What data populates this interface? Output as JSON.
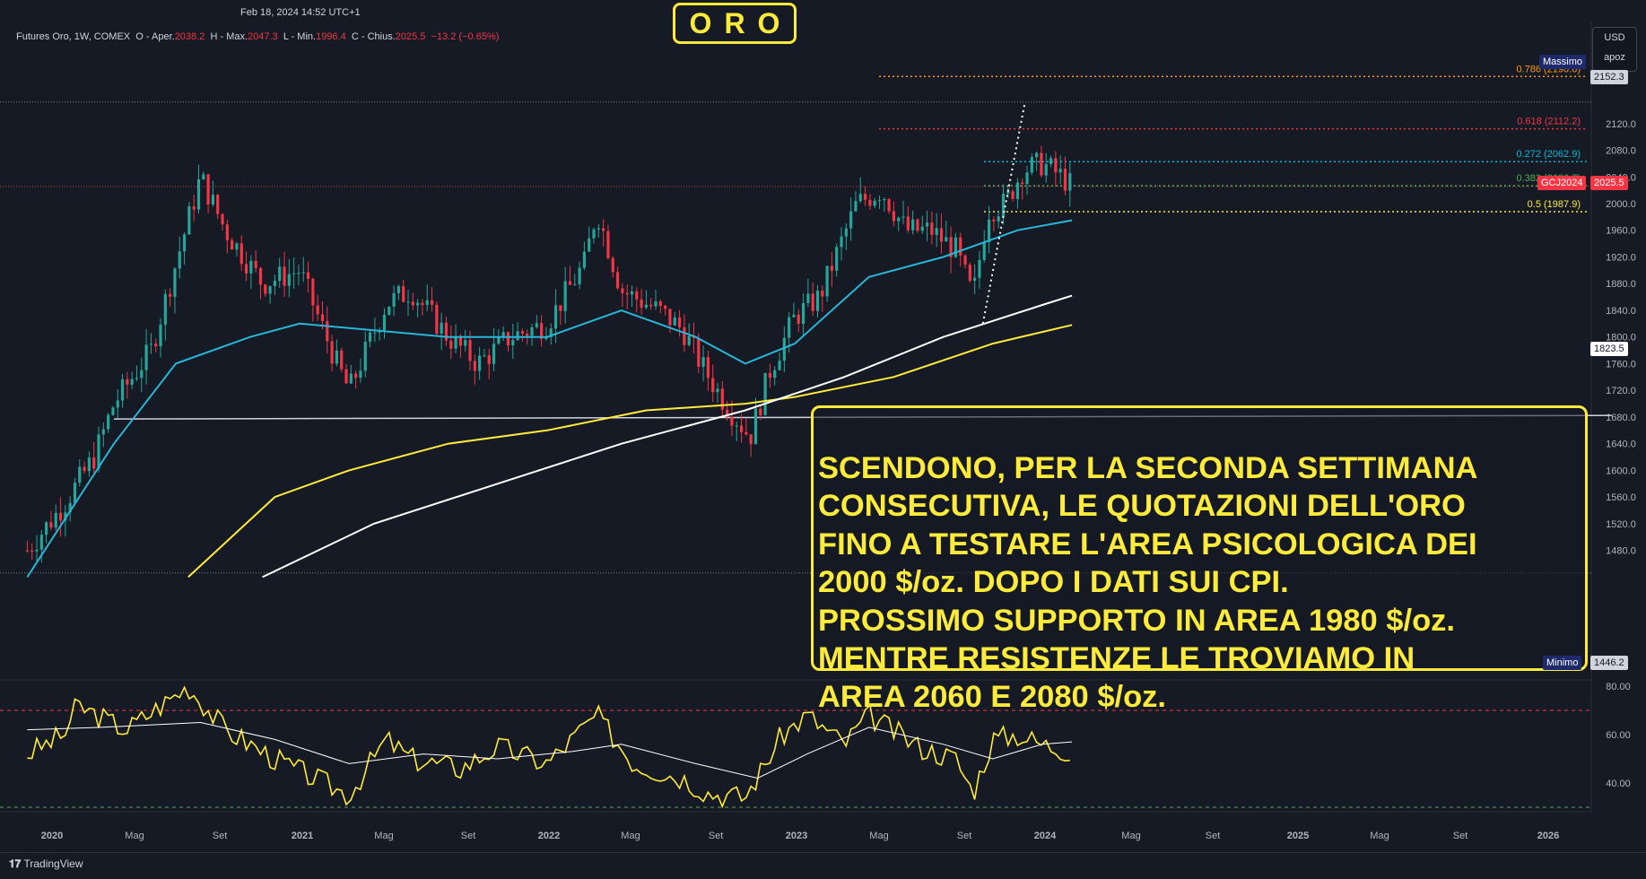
{
  "header": {
    "timestamp": "Feb 18, 2024 14:52 UTC+1",
    "symbol_line": "Futures Oro, 1W, COMEX",
    "ohlc": {
      "open_label": "O - Aper.",
      "open": "2038.2",
      "high_label": "H - Max.",
      "high": "2047.3",
      "low_label": "L - Min.",
      "low": "1996.4",
      "close_label": "C - Chius.",
      "close": "2025.5",
      "change": "−13.2 (−0.65%)"
    }
  },
  "title": "ORO",
  "annotation": {
    "lines": [
      "SCENDONO, PER LA SECONDA SETTIMANA",
      "CONSECUTIVA, LE QUOTAZIONI DELL'ORO",
      "FINO A TESTARE L'AREA PSICOLOGICA DEI",
      "2000 $/oz. DOPO I DATI SUI CPI.",
      "PROSSIMO SUPPORTO IN AREA 1980 $/oz.",
      "MENTRE RESISTENZE LE TROVIAMO IN",
      "AREA 2060 E 2080 $/oz."
    ]
  },
  "currency": {
    "code": "USD",
    "sub": "apoz"
  },
  "price_tags": {
    "max_label": "Massimo",
    "max_value": "2152.3",
    "min_label": "Minimo",
    "min_value": "1446.2",
    "last_symbol": "GCJ2024",
    "last_value": "2025.5",
    "crosshair_value": "1823.5"
  },
  "branding": "TradingView",
  "colors": {
    "background": "#161a25",
    "up": "#26a69a",
    "down": "#f23645",
    "ma_fast": "#29b6d6",
    "ma_mid": "#ffeb3b",
    "ma_slow": "#ffffff",
    "accent_yellow": "#ffeb3b"
  },
  "chart_data": [
    {
      "type": "candlestick",
      "timeframe": "1W",
      "x_ticks": [
        "2020",
        "Mag",
        "Set",
        "2021",
        "Mag",
        "Set",
        "2022",
        "Mag",
        "Set",
        "2023",
        "Mag",
        "Set",
        "2024",
        "Mag",
        "Set",
        "2025",
        "Mag",
        "Set",
        "2026"
      ],
      "y_ticks": [
        1480,
        1520,
        1560,
        1600,
        1640,
        1680,
        1720,
        1760,
        1800,
        1840,
        1880,
        1920,
        1960,
        2000,
        2040,
        2080,
        2120
      ],
      "ylim": [
        1430,
        2200
      ],
      "close_path": [
        [
          2019.9,
          1480
        ],
        [
          2020.05,
          1550
        ],
        [
          2020.17,
          1620
        ],
        [
          2020.25,
          1700
        ],
        [
          2020.4,
          1780
        ],
        [
          2020.6,
          2040
        ],
        [
          2020.7,
          1960
        ],
        [
          2020.85,
          1880
        ],
        [
          2021.0,
          1900
        ],
        [
          2021.15,
          1760
        ],
        [
          2021.2,
          1720
        ],
        [
          2021.35,
          1850
        ],
        [
          2021.45,
          1870
        ],
        [
          2021.6,
          1800
        ],
        [
          2021.72,
          1760
        ],
        [
          2021.85,
          1800
        ],
        [
          2022.0,
          1820
        ],
        [
          2022.15,
          1910
        ],
        [
          2022.2,
          1990
        ],
        [
          2022.3,
          1870
        ],
        [
          2022.45,
          1840
        ],
        [
          2022.55,
          1810
        ],
        [
          2022.62,
          1760
        ],
        [
          2022.72,
          1700
        ],
        [
          2022.82,
          1650
        ],
        [
          2022.9,
          1750
        ],
        [
          2023.0,
          1830
        ],
        [
          2023.1,
          1860
        ],
        [
          2023.25,
          2000
        ],
        [
          2023.35,
          2020
        ],
        [
          2023.45,
          1960
        ],
        [
          2023.55,
          1960
        ],
        [
          2023.65,
          1930
        ],
        [
          2023.72,
          1860
        ],
        [
          2023.78,
          1990
        ],
        [
          2023.85,
          2000
        ],
        [
          2023.92,
          2050
        ],
        [
          2024.0,
          2060
        ],
        [
          2024.08,
          2040
        ],
        [
          2024.12,
          2025.5
        ]
      ],
      "moving_averages": [
        {
          "name": "MA fast",
          "color": "#29b6d6",
          "points": [
            [
              2019.9,
              1440
            ],
            [
              2020.25,
              1640
            ],
            [
              2020.5,
              1760
            ],
            [
              2020.8,
              1800
            ],
            [
              2021.0,
              1820
            ],
            [
              2021.3,
              1810
            ],
            [
              2021.6,
              1800
            ],
            [
              2022.0,
              1800
            ],
            [
              2022.3,
              1840
            ],
            [
              2022.6,
              1800
            ],
            [
              2022.8,
              1760
            ],
            [
              2023.0,
              1790
            ],
            [
              2023.3,
              1890
            ],
            [
              2023.6,
              1920
            ],
            [
              2023.9,
              1960
            ],
            [
              2024.12,
              1975
            ]
          ]
        },
        {
          "name": "MA mid",
          "color": "#ffeb3b",
          "points": [
            [
              2020.55,
              1440
            ],
            [
              2020.9,
              1560
            ],
            [
              2021.2,
              1600
            ],
            [
              2021.6,
              1640
            ],
            [
              2022.0,
              1660
            ],
            [
              2022.4,
              1690
            ],
            [
              2022.8,
              1700
            ],
            [
              2023.0,
              1710
            ],
            [
              2023.4,
              1740
            ],
            [
              2023.8,
              1790
            ],
            [
              2024.12,
              1818
            ]
          ]
        },
        {
          "name": "MA slow",
          "color": "#ffffff",
          "points": [
            [
              2020.85,
              1440
            ],
            [
              2021.3,
              1520
            ],
            [
              2021.8,
              1580
            ],
            [
              2022.3,
              1640
            ],
            [
              2022.8,
              1690
            ],
            [
              2023.2,
              1740
            ],
            [
              2023.6,
              1800
            ],
            [
              2024.0,
              1848
            ],
            [
              2024.12,
              1862
            ]
          ]
        }
      ],
      "fibonacci": [
        {
          "label": "0.786 (2190.6)",
          "value": 2190.6,
          "color": "#ff9800"
        },
        {
          "label": "0.618 (2112.2)",
          "value": 2112.2,
          "color": "#f23645"
        },
        {
          "label": "0.272 (2062.9)",
          "value": 2062.9,
          "color": "#00bcd4"
        },
        {
          "label": "0.382 (2026.7)",
          "value": 2026.7,
          "color": "#4caf50"
        },
        {
          "label": "0.5 (1987.9)",
          "value": 1987.9,
          "color": "#ffeb3b"
        }
      ],
      "horizontal_lines": [
        {
          "value": 1677,
          "from": 2020.25,
          "to": 2026.3,
          "color": "#d1d4dc"
        }
      ],
      "trend_line": {
        "from": [
          2023.76,
          1820
        ],
        "to": [
          2023.93,
          2152.3
        ],
        "style": "dotted",
        "color": "#ffffff"
      }
    },
    {
      "type": "line",
      "name": "RSI",
      "y_ticks": [
        40,
        60,
        80
      ],
      "levels": [
        {
          "value": 70,
          "color": "#f23645"
        },
        {
          "value": 30,
          "color": "#4caf50"
        }
      ],
      "series": [
        {
          "color": "#ffeb3b",
          "values": [
            [
              2019.9,
              52
            ],
            [
              2020.05,
              60
            ],
            [
              2020.1,
              72
            ],
            [
              2020.3,
              62
            ],
            [
              2020.55,
              80
            ],
            [
              2020.7,
              62
            ],
            [
              2020.9,
              50
            ],
            [
              2021.1,
              40
            ],
            [
              2021.2,
              35
            ],
            [
              2021.35,
              58
            ],
            [
              2021.45,
              50
            ],
            [
              2021.65,
              46
            ],
            [
              2021.8,
              55
            ],
            [
              2022.0,
              48
            ],
            [
              2022.1,
              58
            ],
            [
              2022.2,
              68
            ],
            [
              2022.35,
              48
            ],
            [
              2022.55,
              42
            ],
            [
              2022.65,
              36
            ],
            [
              2022.8,
              34
            ],
            [
              2022.95,
              60
            ],
            [
              2023.05,
              68
            ],
            [
              2023.2,
              56
            ],
            [
              2023.3,
              68
            ],
            [
              2023.5,
              55
            ],
            [
              2023.65,
              50
            ],
            [
              2023.72,
              36
            ],
            [
              2023.8,
              58
            ],
            [
              2023.9,
              60
            ],
            [
              2024.0,
              56
            ],
            [
              2024.12,
              53
            ]
          ]
        },
        {
          "color": "#ffffff",
          "values": [
            [
              2019.9,
              62
            ],
            [
              2020.2,
              63
            ],
            [
              2020.6,
              65
            ],
            [
              2020.9,
              58
            ],
            [
              2021.2,
              48
            ],
            [
              2021.5,
              52
            ],
            [
              2021.8,
              50
            ],
            [
              2022.1,
              53
            ],
            [
              2022.3,
              56
            ],
            [
              2022.6,
              48
            ],
            [
              2022.85,
              42
            ],
            [
              2023.05,
              52
            ],
            [
              2023.3,
              63
            ],
            [
              2023.6,
              56
            ],
            [
              2023.8,
              50
            ],
            [
              2024.0,
              56
            ],
            [
              2024.12,
              57
            ]
          ]
        }
      ]
    }
  ]
}
